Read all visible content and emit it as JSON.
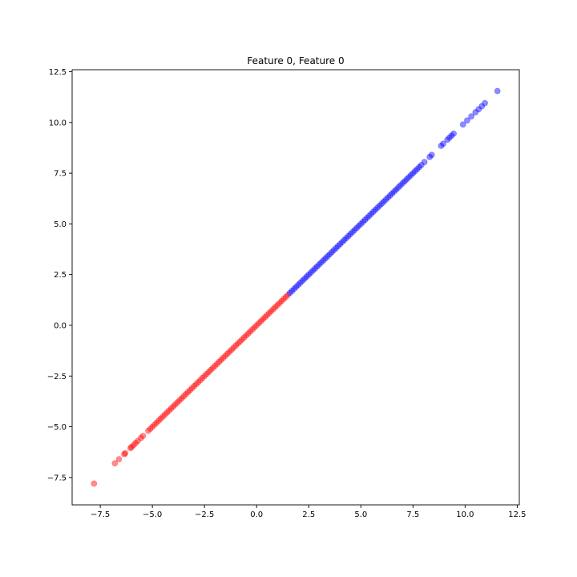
{
  "chart_data": {
    "type": "scatter",
    "title": "Feature 0, Feature 0",
    "xlabel": "",
    "ylabel": "",
    "xlim": [
      -8.85,
      12.6
    ],
    "ylim": [
      -8.85,
      12.6
    ],
    "x_ticks": [
      -7.5,
      -5.0,
      -2.5,
      0.0,
      2.5,
      5.0,
      7.5,
      10.0,
      12.5
    ],
    "x_tick_labels": [
      "−7.5",
      "−5.0",
      "−2.5",
      "0.0",
      "2.5",
      "5.0",
      "7.5",
      "10.0",
      "12.5"
    ],
    "y_ticks": [
      -7.5,
      -5.0,
      -2.5,
      0.0,
      2.5,
      5.0,
      7.5,
      10.0,
      12.5
    ],
    "y_tick_labels": [
      "−7.5",
      "−5.0",
      "−2.5",
      "0.0",
      "2.5",
      "5.0",
      "7.5",
      "10.0",
      "12.5"
    ],
    "grid": false,
    "series": [
      {
        "color": "#ff0000",
        "opacity": 0.45,
        "x": [
          -7.8,
          -6.8,
          -6.6,
          -6.35,
          -6.3,
          -6.05,
          -6.0,
          -5.9,
          -5.8,
          -5.7,
          -5.55,
          -5.45,
          -5.2,
          -5.1,
          -5.0,
          -4.9,
          -4.8,
          -4.7,
          -4.6,
          -4.5,
          -4.4,
          -4.3,
          -4.2,
          -4.1,
          -4.0,
          -3.9,
          -3.8,
          -3.7,
          -3.6,
          -3.5,
          -3.4,
          -3.3,
          -3.2,
          -3.1,
          -3.0,
          -2.9,
          -2.8,
          -2.7,
          -2.6,
          -2.5,
          -2.4,
          -2.3,
          -2.2,
          -2.1,
          -2.0,
          -1.9,
          -1.8,
          -1.7,
          -1.6,
          -1.5,
          -1.4,
          -1.3,
          -1.2,
          -1.1,
          -1.0,
          -0.9,
          -0.8,
          -0.7,
          -0.6,
          -0.5,
          -0.4,
          -0.3,
          -0.2,
          -0.1,
          0.0,
          0.1,
          0.2,
          0.3,
          0.4,
          0.5,
          0.6,
          0.7,
          0.8,
          0.9,
          1.0,
          1.1,
          1.2,
          1.3,
          1.4,
          1.5
        ],
        "y": [
          -7.8,
          -6.8,
          -6.6,
          -6.35,
          -6.3,
          -6.05,
          -6.0,
          -5.9,
          -5.8,
          -5.7,
          -5.55,
          -5.45,
          -5.2,
          -5.1,
          -5.0,
          -4.9,
          -4.8,
          -4.7,
          -4.6,
          -4.5,
          -4.4,
          -4.3,
          -4.2,
          -4.1,
          -4.0,
          -3.9,
          -3.8,
          -3.7,
          -3.6,
          -3.5,
          -3.4,
          -3.3,
          -3.2,
          -3.1,
          -3.0,
          -2.9,
          -2.8,
          -2.7,
          -2.6,
          -2.5,
          -2.4,
          -2.3,
          -2.2,
          -2.1,
          -2.0,
          -1.9,
          -1.8,
          -1.7,
          -1.6,
          -1.5,
          -1.4,
          -1.3,
          -1.2,
          -1.1,
          -1.0,
          -0.9,
          -0.8,
          -0.7,
          -0.6,
          -0.5,
          -0.4,
          -0.3,
          -0.2,
          -0.1,
          0.0,
          0.1,
          0.2,
          0.3,
          0.4,
          0.5,
          0.6,
          0.7,
          0.8,
          0.9,
          1.0,
          1.1,
          1.2,
          1.3,
          1.4,
          1.5
        ]
      },
      {
        "color": "#0000ff",
        "opacity": 0.45,
        "x": [
          1.6,
          1.7,
          1.8,
          1.9,
          2.0,
          2.1,
          2.2,
          2.3,
          2.4,
          2.5,
          2.6,
          2.7,
          2.8,
          2.9,
          3.0,
          3.1,
          3.2,
          3.3,
          3.4,
          3.5,
          3.6,
          3.7,
          3.8,
          3.9,
          4.0,
          4.1,
          4.2,
          4.3,
          4.4,
          4.5,
          4.6,
          4.7,
          4.8,
          4.9,
          5.0,
          5.1,
          5.2,
          5.3,
          5.4,
          5.5,
          5.6,
          5.7,
          5.8,
          5.9,
          6.0,
          6.1,
          6.2,
          6.3,
          6.4,
          6.5,
          6.6,
          6.7,
          6.8,
          6.9,
          7.0,
          7.1,
          7.2,
          7.3,
          7.4,
          7.5,
          7.6,
          7.7,
          7.8,
          7.9,
          8.05,
          8.3,
          8.4,
          8.85,
          8.95,
          9.15,
          9.25,
          9.35,
          9.45,
          9.9,
          10.1,
          10.3,
          10.5,
          10.65,
          10.8,
          10.95,
          11.55
        ],
        "y": [
          1.6,
          1.7,
          1.8,
          1.9,
          2.0,
          2.1,
          2.2,
          2.3,
          2.4,
          2.5,
          2.6,
          2.7,
          2.8,
          2.9,
          3.0,
          3.1,
          3.2,
          3.3,
          3.4,
          3.5,
          3.6,
          3.7,
          3.8,
          3.9,
          4.0,
          4.1,
          4.2,
          4.3,
          4.4,
          4.5,
          4.6,
          4.7,
          4.8,
          4.9,
          5.0,
          5.1,
          5.2,
          5.3,
          5.4,
          5.5,
          5.6,
          5.7,
          5.8,
          5.9,
          6.0,
          6.1,
          6.2,
          6.3,
          6.4,
          6.5,
          6.6,
          6.7,
          6.8,
          6.9,
          7.0,
          7.1,
          7.2,
          7.3,
          7.4,
          7.5,
          7.6,
          7.7,
          7.8,
          7.9,
          8.05,
          8.3,
          8.4,
          8.85,
          8.95,
          9.15,
          9.25,
          9.35,
          9.45,
          9.9,
          10.1,
          10.3,
          10.5,
          10.65,
          10.8,
          10.95,
          11.55
        ]
      }
    ]
  }
}
